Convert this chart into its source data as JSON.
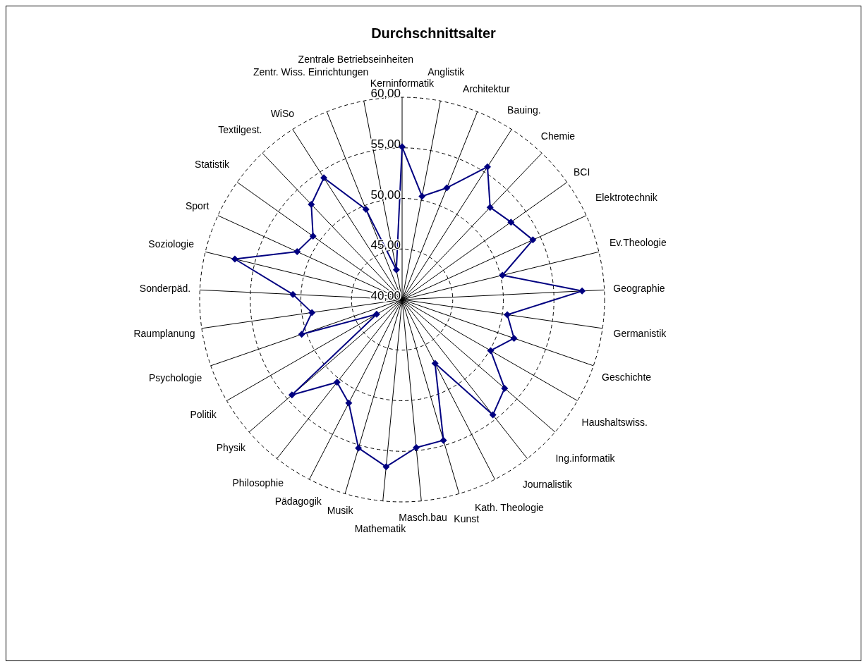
{
  "chart_data": {
    "type": "radar",
    "title": "Durchschnittsalter",
    "categories": [
      "Kerninformatik",
      "Anglistik",
      "Architektur",
      "Bauing.",
      "Chemie",
      "BCI",
      "Elektrotechnik",
      "Ev.Theologie",
      "Geographie",
      "Germanistik",
      "Geschichte",
      "Haushaltswiss.",
      "Ing.informatik",
      "Journalistik",
      "Kath. Theologie",
      "Kunst",
      "Masch.bau",
      "Mathematik",
      "Musik",
      "Pädagogik",
      "Philosophie",
      "Physik",
      "Politik",
      "Psychologie",
      "Raumplanung",
      "Sonderpäd.",
      "Soziologie",
      "Sport",
      "Statistik",
      "Textilgest.",
      "WiSo",
      "Zentr. Wiss. Einrichtungen",
      "Zentrale Betriebseinheiten"
    ],
    "series": [
      {
        "color": "#000080",
        "values": [
          55.1,
          50.4,
          51.9,
          55.6,
          52.6,
          53.2,
          54.2,
          50.2,
          57.8,
          50.5,
          51.7,
          50.1,
          53.4,
          54.5,
          47.1,
          54.5,
          54.7,
          56.6,
          55.3,
          51.5,
          50.4,
          54.4,
          42.9,
          50.5,
          49.0,
          50.8,
          57.0,
          51.4,
          50.8,
          53.0,
          54.3,
          49.6,
          43.0
        ]
      }
    ],
    "ylim": [
      40,
      60
    ],
    "yticks": [
      {
        "value": 40,
        "label": "40,00"
      },
      {
        "value": 45,
        "label": "45,00"
      },
      {
        "value": 50,
        "label": "50,00"
      },
      {
        "value": 55,
        "label": "55,00"
      },
      {
        "value": 60,
        "label": "60,00"
      }
    ],
    "grid": true,
    "legend": false,
    "marker": "diamond",
    "line_style": "solid"
  }
}
